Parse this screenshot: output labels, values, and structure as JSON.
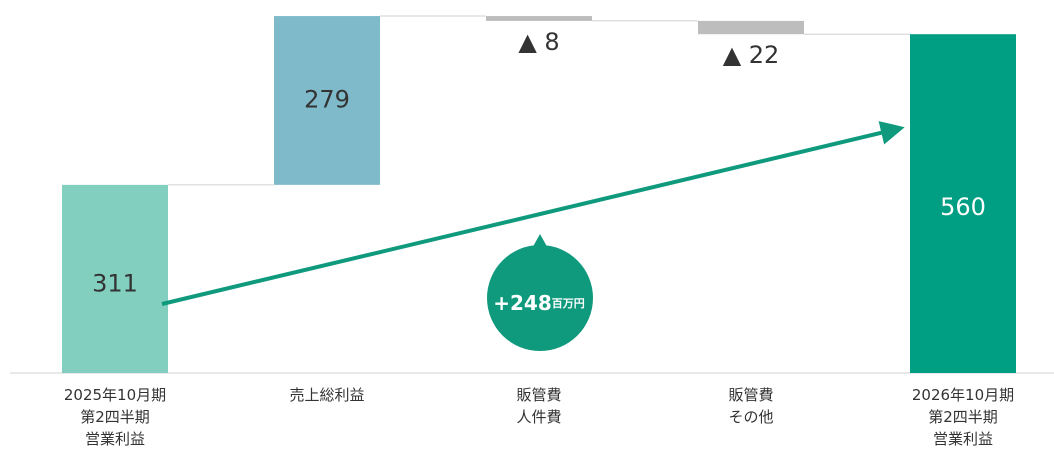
{
  "chart_data": {
    "type": "waterfall",
    "categories": [
      "2025年10月期\n第2四半期\n営業利益",
      "売上総利益",
      "販管費\n人件費",
      "販管費\nその他",
      "2026年10月期\n第2四半期\n営業利益"
    ],
    "values": [
      311,
      279,
      -8,
      -22,
      560
    ],
    "value_labels": [
      "311",
      "279",
      "▲ 8",
      "▲ 22",
      "560"
    ],
    "totals": [
      true,
      false,
      false,
      false,
      true
    ],
    "colors": [
      "#82cfc0",
      "#7fbacb",
      "#bdbdbd",
      "#bdbdbd",
      "#009e82"
    ],
    "ylim": [
      0,
      600
    ],
    "annotation": {
      "text": "+248",
      "unit": "百万円",
      "color": "#0f9a7e"
    }
  }
}
